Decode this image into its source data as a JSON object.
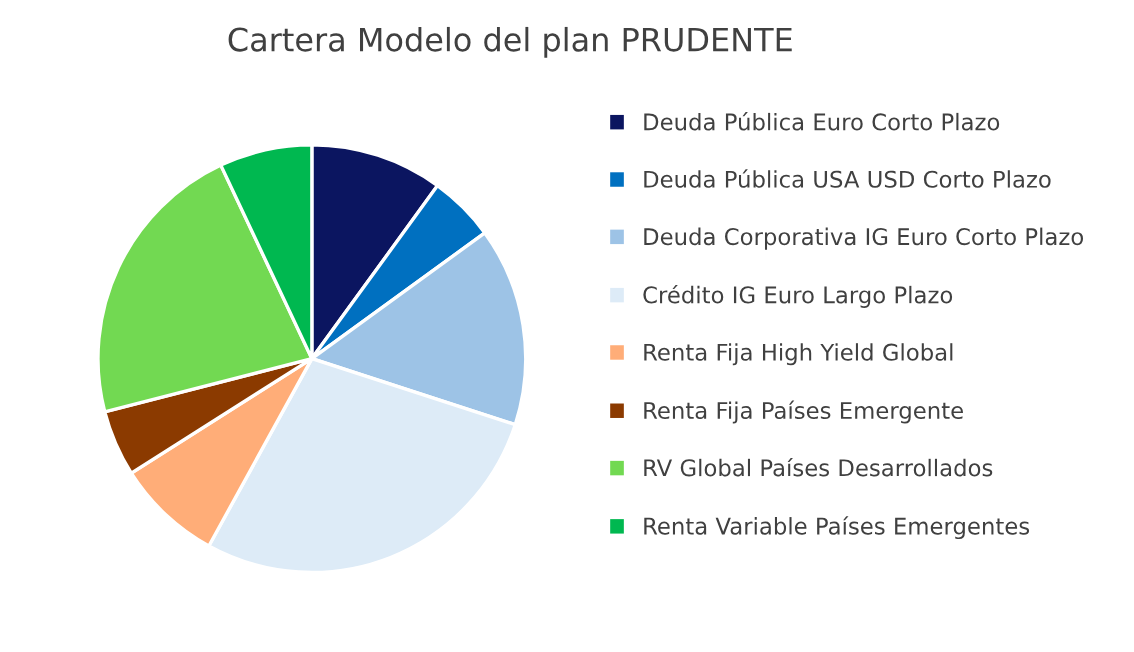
{
  "chart_data": {
    "type": "pie",
    "title": "Cartera Modelo del plan PRUDENTE",
    "categories": [
      "Deuda Pública Euro Corto Plazo",
      "Deuda Pública USA USD Corto Plazo",
      "Deuda Corporativa IG Euro Corto Plazo",
      "Crédito IG Euro Largo Plazo",
      "Renta Fija High Yield Global",
      "Renta Fija Países Emergente",
      "RV Global Países Desarrollados",
      "Renta Variable Países Emergentes"
    ],
    "values": [
      10,
      5,
      15,
      28,
      8,
      5,
      22,
      7
    ],
    "colors": [
      "#0b1560",
      "#0070c0",
      "#9dc3e6",
      "#ddebf7",
      "#ffad78",
      "#8b3a00",
      "#72d952",
      "#00b850"
    ],
    "legend": "right"
  }
}
